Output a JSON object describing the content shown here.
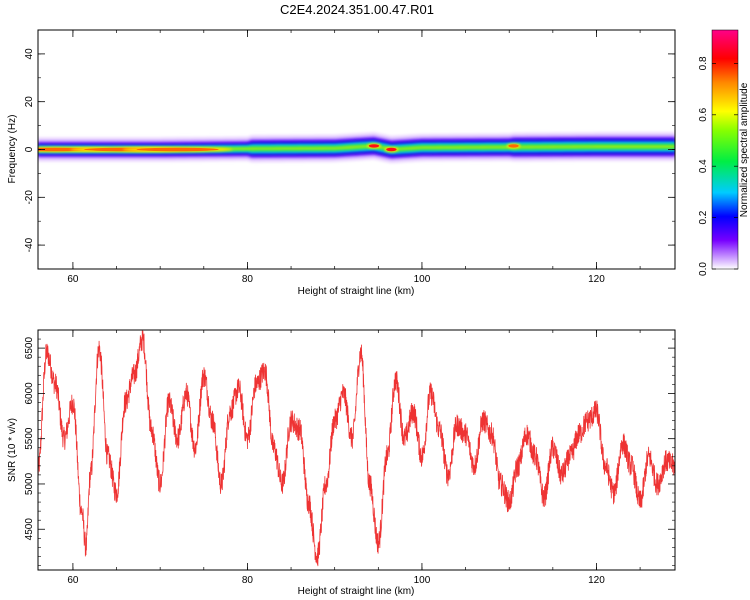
{
  "title": "C2E4.2024.351.00.47.R01",
  "chart_data": [
    {
      "type": "heatmap",
      "xlabel": "Height of straight line (km)",
      "ylabel": "Frequency (Hz)",
      "xlim": [
        56,
        129
      ],
      "ylim": [
        -50,
        50
      ],
      "xticks": [
        60,
        80,
        100,
        120
      ],
      "yticks": [
        -40,
        -20,
        0,
        20,
        40
      ],
      "colorbar": {
        "label": "Normalized spectral amplitude",
        "ticks": [
          0.0,
          0.2,
          0.4,
          0.6,
          0.8
        ],
        "range": [
          0.0,
          0.93
        ]
      },
      "band_center_hz": [
        {
          "x": 56,
          "f": 0
        },
        {
          "x": 70,
          "f": 0
        },
        {
          "x": 80,
          "f": 0.3
        },
        {
          "x": 90,
          "f": 0.5
        },
        {
          "x": 94.5,
          "f": 1.5
        },
        {
          "x": 96.5,
          "f": 0.0
        },
        {
          "x": 100,
          "f": 0.8
        },
        {
          "x": 110,
          "f": 1.0
        },
        {
          "x": 120,
          "f": 1.2
        },
        {
          "x": 129,
          "f": 1.2
        }
      ],
      "peaks": [
        {
          "x": 58,
          "f": 0,
          "amplitude": 0.8
        },
        {
          "x": 66,
          "f": 0,
          "amplitude": 0.75
        },
        {
          "x": 72,
          "f": 0,
          "amplitude": 0.65
        },
        {
          "x": 94.5,
          "f": 1.5,
          "amplitude": 0.85
        },
        {
          "x": 96.5,
          "f": 0,
          "amplitude": 0.9
        },
        {
          "x": 110.5,
          "f": 1.5,
          "amplitude": 0.75
        }
      ]
    },
    {
      "type": "line",
      "xlabel": "Height of straight line (km)",
      "ylabel": "SNR (10 * v/v)",
      "xlim": [
        56,
        129
      ],
      "ylim": [
        4050,
        6700
      ],
      "xticks": [
        60,
        80,
        100,
        120
      ],
      "yticks": [
        4500,
        5000,
        5500,
        6000,
        6500
      ],
      "series": [
        {
          "color": "#ee3333",
          "x": [
            56,
            57,
            58,
            59,
            60,
            61,
            61.5,
            62,
            63,
            64,
            65,
            66,
            67,
            68,
            69,
            70,
            71,
            72,
            73,
            74,
            75,
            76,
            77,
            78,
            79,
            80,
            81,
            82,
            83,
            84,
            85,
            86,
            87,
            88,
            89,
            90,
            91,
            92,
            93,
            94,
            95,
            96,
            97,
            98,
            99,
            100,
            101,
            102,
            103,
            104,
            105,
            106,
            107,
            108,
            109,
            110,
            111,
            112,
            113,
            114,
            115,
            116,
            117,
            118,
            119,
            120,
            121,
            122,
            123,
            124,
            125,
            126,
            127,
            128,
            129
          ],
          "y": [
            5150,
            6450,
            6100,
            5500,
            5900,
            4700,
            4300,
            5100,
            6500,
            5300,
            4900,
            5900,
            6200,
            6600,
            5600,
            5000,
            5900,
            5500,
            6000,
            5400,
            6200,
            5700,
            5000,
            5800,
            6050,
            5500,
            6100,
            6250,
            5400,
            5000,
            5700,
            5600,
            4800,
            4200,
            5000,
            5700,
            6000,
            5500,
            6450,
            5000,
            4350,
            5300,
            6150,
            5500,
            5800,
            5300,
            6000,
            5600,
            5100,
            5650,
            5550,
            5200,
            5700,
            5550,
            5000,
            4800,
            5200,
            5550,
            5300,
            4850,
            5400,
            5100,
            5300,
            5550,
            5700,
            5800,
            5200,
            4900,
            5450,
            5200,
            4800,
            5300,
            5000,
            5250,
            5200
          ]
        }
      ]
    }
  ]
}
